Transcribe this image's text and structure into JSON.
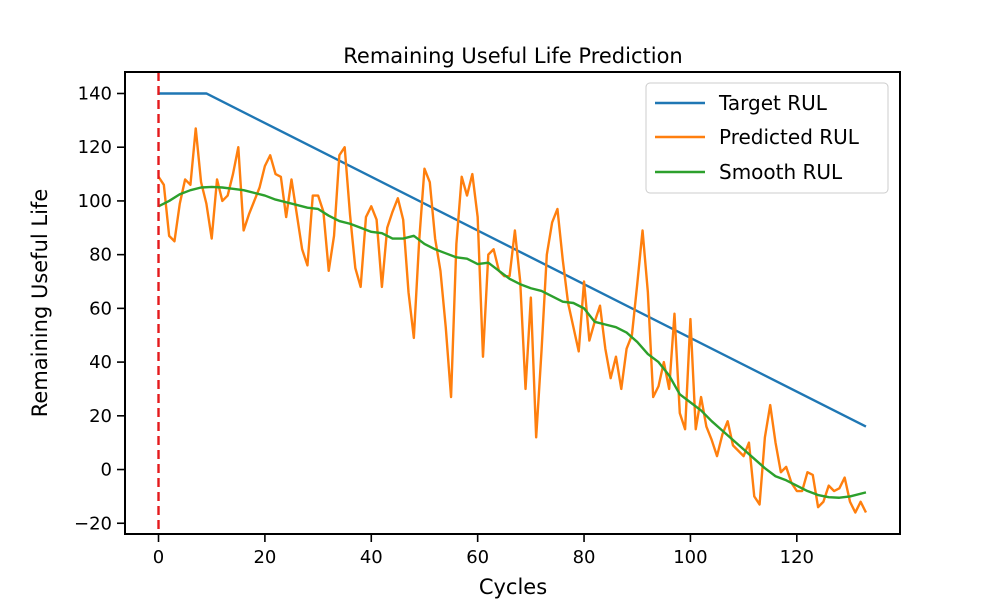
{
  "chart_data": {
    "type": "line",
    "title": "Remaining Useful Life Prediction",
    "xlabel": "Cycles",
    "ylabel": "Remaining Useful Life",
    "xlim": [
      -6.3,
      139.4
    ],
    "ylim": [
      -24,
      148
    ],
    "xticks": [
      0,
      20,
      40,
      60,
      80,
      100,
      120
    ],
    "yticks": [
      -20,
      0,
      20,
      40,
      60,
      80,
      100,
      120,
      140
    ],
    "xtick_labels": [
      "0",
      "20",
      "40",
      "60",
      "80",
      "100",
      "120"
    ],
    "ytick_labels": [
      "−20",
      "0",
      "20",
      "40",
      "60",
      "80",
      "100",
      "120",
      "140"
    ],
    "grid": false,
    "legend_position": "upper right",
    "vline": {
      "x": 0,
      "color": "#e41a1c",
      "style": "dashed"
    },
    "series": [
      {
        "name": "Target RUL",
        "color": "#1f77b4",
        "points": [
          [
            0,
            140
          ],
          [
            9,
            140
          ],
          [
            133,
            16
          ]
        ]
      },
      {
        "name": "Predicted RUL",
        "color": "#ff7f0e",
        "points": [
          [
            0,
            109
          ],
          [
            1,
            106
          ],
          [
            2,
            87
          ],
          [
            3,
            85
          ],
          [
            4,
            99
          ],
          [
            5,
            108
          ],
          [
            6,
            106
          ],
          [
            7,
            127
          ],
          [
            8,
            107
          ],
          [
            9,
            99
          ],
          [
            10,
            86
          ],
          [
            11,
            108
          ],
          [
            12,
            100
          ],
          [
            13,
            102
          ],
          [
            14,
            110
          ],
          [
            15,
            120
          ],
          [
            16,
            89
          ],
          [
            17,
            95
          ],
          [
            18,
            100
          ],
          [
            19,
            105
          ],
          [
            20,
            113
          ],
          [
            21,
            117
          ],
          [
            22,
            110
          ],
          [
            23,
            109
          ],
          [
            24,
            94
          ],
          [
            25,
            108
          ],
          [
            26,
            95
          ],
          [
            27,
            82
          ],
          [
            28,
            76
          ],
          [
            29,
            102
          ],
          [
            30,
            102
          ],
          [
            31,
            96
          ],
          [
            32,
            74
          ],
          [
            33,
            87
          ],
          [
            34,
            117
          ],
          [
            35,
            120
          ],
          [
            36,
            95
          ],
          [
            37,
            75
          ],
          [
            38,
            68
          ],
          [
            39,
            94
          ],
          [
            40,
            98
          ],
          [
            41,
            93
          ],
          [
            42,
            68
          ],
          [
            43,
            90
          ],
          [
            44,
            96
          ],
          [
            45,
            101
          ],
          [
            46,
            93
          ],
          [
            47,
            66
          ],
          [
            48,
            49
          ],
          [
            49,
            85
          ],
          [
            50,
            112
          ],
          [
            51,
            107
          ],
          [
            52,
            86
          ],
          [
            53,
            74
          ],
          [
            54,
            53
          ],
          [
            55,
            27
          ],
          [
            56,
            84
          ],
          [
            57,
            109
          ],
          [
            58,
            102
          ],
          [
            59,
            110
          ],
          [
            60,
            94
          ],
          [
            61,
            42
          ],
          [
            62,
            80
          ],
          [
            63,
            82
          ],
          [
            64,
            74
          ],
          [
            65,
            72
          ],
          [
            66,
            72
          ],
          [
            67,
            89
          ],
          [
            68,
            70
          ],
          [
            69,
            30
          ],
          [
            70,
            64
          ],
          [
            71,
            12
          ],
          [
            72,
            44
          ],
          [
            73,
            80
          ],
          [
            74,
            92
          ],
          [
            75,
            97
          ],
          [
            76,
            78
          ],
          [
            77,
            62
          ],
          [
            78,
            53
          ],
          [
            79,
            44
          ],
          [
            80,
            70
          ],
          [
            81,
            48
          ],
          [
            82,
            55
          ],
          [
            83,
            61
          ],
          [
            84,
            45
          ],
          [
            85,
            34
          ],
          [
            86,
            42
          ],
          [
            87,
            30
          ],
          [
            88,
            45
          ],
          [
            89,
            50
          ],
          [
            90,
            69
          ],
          [
            91,
            89
          ],
          [
            92,
            66
          ],
          [
            93,
            27
          ],
          [
            94,
            31
          ],
          [
            95,
            40
          ],
          [
            96,
            30
          ],
          [
            97,
            58
          ],
          [
            98,
            21
          ],
          [
            99,
            15
          ],
          [
            100,
            56
          ],
          [
            101,
            15
          ],
          [
            102,
            27
          ],
          [
            103,
            16
          ],
          [
            104,
            11
          ],
          [
            105,
            5
          ],
          [
            106,
            13
          ],
          [
            107,
            18
          ],
          [
            108,
            9
          ],
          [
            109,
            7
          ],
          [
            110,
            5
          ],
          [
            111,
            10
          ],
          [
            112,
            -10
          ],
          [
            113,
            -13
          ],
          [
            114,
            12
          ],
          [
            115,
            24
          ],
          [
            116,
            10
          ],
          [
            117,
            -1
          ],
          [
            118,
            1
          ],
          [
            119,
            -5
          ],
          [
            120,
            -8
          ],
          [
            121,
            -8
          ],
          [
            122,
            -1
          ],
          [
            123,
            -2
          ],
          [
            124,
            -14
          ],
          [
            125,
            -12
          ],
          [
            126,
            -6
          ],
          [
            127,
            -8
          ],
          [
            128,
            -7
          ],
          [
            129,
            -3
          ],
          [
            130,
            -12
          ],
          [
            131,
            -16
          ],
          [
            132,
            -12
          ],
          [
            133,
            -16
          ]
        ]
      },
      {
        "name": "Smooth RUL",
        "color": "#2ca02c",
        "points": [
          [
            0,
            98
          ],
          [
            2,
            100
          ],
          [
            4,
            102.5
          ],
          [
            6,
            104
          ],
          [
            8,
            105
          ],
          [
            10,
            105.2
          ],
          [
            12,
            105
          ],
          [
            14,
            104.5
          ],
          [
            16,
            104
          ],
          [
            18,
            103
          ],
          [
            20,
            102
          ],
          [
            22,
            100.5
          ],
          [
            24,
            99.5
          ],
          [
            26,
            98.5
          ],
          [
            28,
            97.5
          ],
          [
            30,
            97
          ],
          [
            32,
            94.5
          ],
          [
            34,
            92.5
          ],
          [
            36,
            91.5
          ],
          [
            38,
            90
          ],
          [
            40,
            88.5
          ],
          [
            42,
            88
          ],
          [
            44,
            86
          ],
          [
            46,
            86
          ],
          [
            48,
            87
          ],
          [
            50,
            84
          ],
          [
            52,
            82
          ],
          [
            54,
            80.5
          ],
          [
            56,
            79
          ],
          [
            58,
            78.5
          ],
          [
            60,
            76.5
          ],
          [
            62,
            77
          ],
          [
            64,
            74
          ],
          [
            66,
            71
          ],
          [
            68,
            69
          ],
          [
            70,
            67.5
          ],
          [
            72,
            66.5
          ],
          [
            74,
            64.5
          ],
          [
            76,
            62.5
          ],
          [
            78,
            62
          ],
          [
            80,
            60
          ],
          [
            82,
            55
          ],
          [
            84,
            54
          ],
          [
            86,
            53
          ],
          [
            88,
            51
          ],
          [
            90,
            47.5
          ],
          [
            92,
            43
          ],
          [
            94,
            40
          ],
          [
            96,
            35
          ],
          [
            98,
            28
          ],
          [
            100,
            25
          ],
          [
            102,
            22
          ],
          [
            104,
            18
          ],
          [
            106,
            14.5
          ],
          [
            108,
            11
          ],
          [
            110,
            7.5
          ],
          [
            112,
            4
          ],
          [
            114,
            0.5
          ],
          [
            116,
            -2.5
          ],
          [
            118,
            -4
          ],
          [
            120,
            -6
          ],
          [
            122,
            -8
          ],
          [
            124,
            -9.5
          ],
          [
            126,
            -10.3
          ],
          [
            128,
            -10.5
          ],
          [
            130,
            -10
          ],
          [
            133,
            -8.5
          ]
        ]
      }
    ]
  }
}
